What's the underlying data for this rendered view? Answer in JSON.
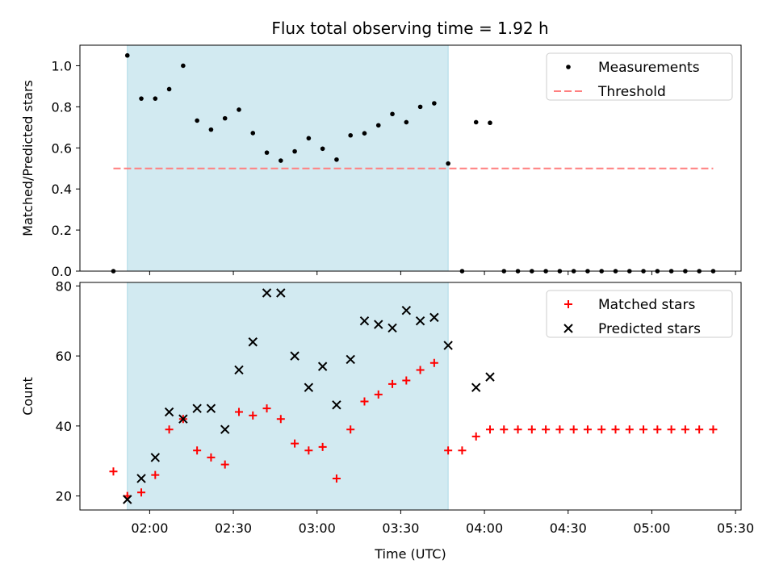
{
  "chart_data": [
    {
      "type": "scatter",
      "title": "Flux total observing time = 1.92 h",
      "xlabel": "",
      "ylabel": "Matched/Predicted stars",
      "ylim": [
        0,
        1.1
      ],
      "yticks": [
        "0.0",
        "0.2",
        "0.4",
        "0.6",
        "0.8",
        "1.0"
      ],
      "xlim": [
        "01:35",
        "05:32"
      ],
      "highlight_span": [
        "01:52",
        "03:47"
      ],
      "highlight_color": "#add8e6",
      "legend_position": "top-right",
      "series": [
        {
          "name": "Measurements",
          "marker": "dot",
          "color": "#000000",
          "x": [
            "01:47",
            "01:52",
            "01:57",
            "02:02",
            "02:07",
            "02:12",
            "02:17",
            "02:22",
            "02:27",
            "02:32",
            "02:37",
            "02:42",
            "02:47",
            "02:52",
            "02:57",
            "03:02",
            "03:07",
            "03:12",
            "03:17",
            "03:22",
            "03:27",
            "03:32",
            "03:37",
            "03:42",
            "03:47",
            "03:52",
            "03:57",
            "04:02",
            "04:07",
            "04:12",
            "04:17",
            "04:22",
            "04:27",
            "04:32",
            "04:37",
            "04:42",
            "04:47",
            "04:52",
            "04:57",
            "05:02",
            "05:07",
            "05:12",
            "05:17",
            "05:22"
          ],
          "y": [
            0.0,
            1.05,
            0.84,
            0.84,
            0.886,
            1.0,
            0.733,
            0.689,
            0.744,
            0.786,
            0.672,
            0.577,
            0.538,
            0.583,
            0.647,
            0.596,
            0.543,
            0.661,
            0.671,
            0.71,
            0.765,
            0.725,
            0.8,
            0.817,
            0.524,
            0.0,
            0.725,
            0.722,
            0.0,
            0.0,
            0.0,
            0.0,
            0.0,
            0.0,
            0.0,
            0.0,
            0.0,
            0.0,
            0.0,
            0.0,
            0.0,
            0.0,
            0.0,
            0.0
          ]
        },
        {
          "name": "Threshold",
          "style": "dashed",
          "color": "#ff7f7f",
          "x": [
            "01:47",
            "05:22"
          ],
          "y": [
            0.5,
            0.5
          ]
        }
      ]
    },
    {
      "type": "scatter",
      "title": "",
      "xlabel": "Time (UTC)",
      "ylabel": "Count",
      "ylim": [
        16,
        81
      ],
      "yticks": [
        "20",
        "40",
        "60",
        "80"
      ],
      "xlim": [
        "01:35",
        "05:32"
      ],
      "xticks": [
        "02:00",
        "02:30",
        "03:00",
        "03:30",
        "04:00",
        "04:30",
        "05:00",
        "05:30"
      ],
      "highlight_span": [
        "01:52",
        "03:47"
      ],
      "highlight_color": "#add8e6",
      "legend_position": "top-right",
      "series": [
        {
          "name": "Matched stars",
          "marker": "plus",
          "color": "#ff0000",
          "x": [
            "01:47",
            "01:52",
            "01:57",
            "02:02",
            "02:07",
            "02:12",
            "02:17",
            "02:22",
            "02:27",
            "02:32",
            "02:37",
            "02:42",
            "02:47",
            "02:52",
            "02:57",
            "03:02",
            "03:07",
            "03:12",
            "03:17",
            "03:22",
            "03:27",
            "03:32",
            "03:37",
            "03:42",
            "03:47",
            "03:52",
            "03:57",
            "04:02",
            "04:07",
            "04:12",
            "04:17",
            "04:22",
            "04:27",
            "04:32",
            "04:37",
            "04:42",
            "04:47",
            "04:52",
            "04:57",
            "05:02",
            "05:07",
            "05:12",
            "05:17",
            "05:22"
          ],
          "y": [
            27,
            20,
            21,
            26,
            39,
            42,
            33,
            31,
            29,
            44,
            43,
            45,
            42,
            35,
            33,
            34,
            25,
            39,
            47,
            49,
            52,
            53,
            56,
            58,
            33,
            33,
            37,
            39,
            39,
            39,
            39,
            39,
            39,
            39,
            39,
            39,
            39,
            39,
            39,
            39,
            39,
            39,
            39,
            39
          ]
        },
        {
          "name": "Predicted stars",
          "marker": "x",
          "color": "#000000",
          "x": [
            "01:52",
            "01:57",
            "02:02",
            "02:07",
            "02:12",
            "02:17",
            "02:22",
            "02:27",
            "02:32",
            "02:37",
            "02:42",
            "02:47",
            "02:52",
            "02:57",
            "03:02",
            "03:07",
            "03:12",
            "03:17",
            "03:22",
            "03:27",
            "03:32",
            "03:37",
            "03:42",
            "03:47",
            "03:57",
            "04:02"
          ],
          "y": [
            19,
            25,
            31,
            44,
            42,
            45,
            45,
            39,
            56,
            64,
            78,
            78,
            60,
            51,
            57,
            46,
            59,
            70,
            69,
            68,
            73,
            70,
            71,
            63,
            51,
            54
          ]
        }
      ]
    }
  ]
}
